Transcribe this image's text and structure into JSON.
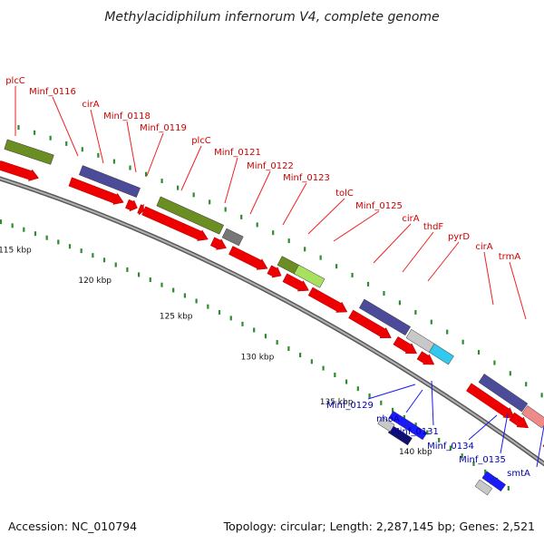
{
  "title": "Methylacidiphilum infernorum V4, complete genome",
  "footer": {
    "accession": "Accession: NC_010794",
    "summary": "Topology: circular; Length: 2,287,145 bp; Genes: 2,521"
  },
  "colors": {
    "forward_gene": "#ee0000",
    "reverse_gene": "#0000dd",
    "backbone": "#888888",
    "tick": "#2e8b2e",
    "label_forward": "#cc0000",
    "label_reverse": "#0000aa",
    "cog_olive": "#6b8e23",
    "cog_purple": "#4b4b9a",
    "cog_gray": "#777777",
    "cog_lightgray": "#c8c8c8",
    "cog_cyan": "#33c8ee",
    "cog_pink": "#ee8a8a",
    "cog_lime": "#a8e060",
    "cog_navy": "#101070"
  },
  "ticks": [
    "115 kbp",
    "120 kbp",
    "125 kbp",
    "130 kbp",
    "135 kbp",
    "140 kbp"
  ],
  "forward_labels": [
    "plcC",
    "Minf_0116",
    "cirA",
    "Minf_0118",
    "Minf_0119",
    "plcC",
    "Minf_0121",
    "Minf_0122",
    "Minf_0123",
    "tolC",
    "Minf_0125",
    "cirA",
    "thdF",
    "pyrD",
    "cirA",
    "trmA"
  ],
  "reverse_labels": [
    "Minf_0129",
    "nhoA",
    "Minf_0131",
    "Minf_0134",
    "Minf_0135",
    "smtA"
  ]
}
